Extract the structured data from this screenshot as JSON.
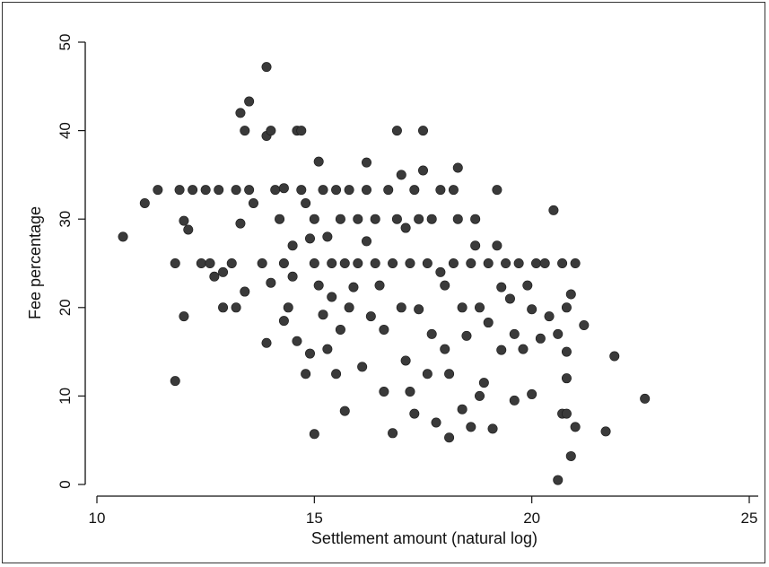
{
  "chart_data": {
    "type": "scatter",
    "title": "",
    "xlabel": "Settlement amount (natural log)",
    "ylabel": "Fee percentage",
    "xlim": [
      10,
      25
    ],
    "ylim": [
      0,
      50
    ],
    "xticks": [
      10,
      15,
      20,
      25
    ],
    "yticks": [
      0,
      10,
      20,
      30,
      40,
      50
    ],
    "grid": false,
    "legend": "none",
    "marker_color": "#3a3a3a",
    "series": [
      {
        "points": [
          [
            10.6,
            28
          ],
          [
            11.1,
            31.8
          ],
          [
            11.4,
            33.3
          ],
          [
            11.8,
            25
          ],
          [
            11.9,
            33.3
          ],
          [
            11.8,
            11.7
          ],
          [
            12.0,
            19
          ],
          [
            12.0,
            29.8
          ],
          [
            12.1,
            28.8
          ],
          [
            12.2,
            33.3
          ],
          [
            12.4,
            25
          ],
          [
            12.5,
            33.3
          ],
          [
            12.6,
            25
          ],
          [
            12.7,
            23.5
          ],
          [
            12.8,
            33.3
          ],
          [
            12.9,
            24
          ],
          [
            12.9,
            20
          ],
          [
            13.1,
            25
          ],
          [
            13.2,
            33.3
          ],
          [
            13.2,
            20
          ],
          [
            13.3,
            42
          ],
          [
            13.4,
            40
          ],
          [
            13.5,
            43.3
          ],
          [
            13.4,
            21.8
          ],
          [
            13.3,
            29.5
          ],
          [
            13.5,
            33.3
          ],
          [
            13.6,
            31.8
          ],
          [
            13.8,
            25
          ],
          [
            13.9,
            47.2
          ],
          [
            13.9,
            39.4
          ],
          [
            14.0,
            40
          ],
          [
            13.9,
            16
          ],
          [
            14.0,
            22.8
          ],
          [
            14.1,
            33.3
          ],
          [
            14.2,
            30
          ],
          [
            14.3,
            33.5
          ],
          [
            14.3,
            25
          ],
          [
            14.3,
            18.5
          ],
          [
            14.4,
            20
          ],
          [
            14.5,
            27
          ],
          [
            14.5,
            23.5
          ],
          [
            14.6,
            40
          ],
          [
            14.6,
            16.2
          ],
          [
            14.7,
            40
          ],
          [
            14.7,
            33.3
          ],
          [
            14.8,
            31.8
          ],
          [
            14.8,
            12.5
          ],
          [
            14.9,
            27.8
          ],
          [
            14.9,
            14.8
          ],
          [
            15.0,
            30
          ],
          [
            15.0,
            25
          ],
          [
            15.0,
            5.7
          ],
          [
            15.1,
            36.5
          ],
          [
            15.1,
            22.5
          ],
          [
            15.2,
            33.3
          ],
          [
            15.2,
            19.2
          ],
          [
            15.3,
            15.3
          ],
          [
            15.3,
            28
          ],
          [
            15.4,
            25
          ],
          [
            15.4,
            21.2
          ],
          [
            15.5,
            33.3
          ],
          [
            15.5,
            12.5
          ],
          [
            15.6,
            30
          ],
          [
            15.6,
            17.5
          ],
          [
            15.7,
            25
          ],
          [
            15.7,
            8.3
          ],
          [
            15.8,
            33.3
          ],
          [
            15.8,
            20
          ],
          [
            15.9,
            22.3
          ],
          [
            16.0,
            30
          ],
          [
            16.0,
            25
          ],
          [
            16.1,
            13.3
          ],
          [
            16.2,
            36.4
          ],
          [
            16.2,
            27.5
          ],
          [
            16.2,
            33.3
          ],
          [
            16.3,
            19
          ],
          [
            16.4,
            25
          ],
          [
            16.4,
            30
          ],
          [
            16.5,
            22.5
          ],
          [
            16.6,
            17.5
          ],
          [
            16.6,
            10.5
          ],
          [
            16.7,
            33.3
          ],
          [
            16.8,
            25
          ],
          [
            16.8,
            5.8
          ],
          [
            16.9,
            40
          ],
          [
            16.9,
            30
          ],
          [
            17.0,
            35
          ],
          [
            17.0,
            20
          ],
          [
            17.1,
            29
          ],
          [
            17.1,
            14
          ],
          [
            17.2,
            25
          ],
          [
            17.2,
            10.5
          ],
          [
            17.3,
            33.3
          ],
          [
            17.3,
            8
          ],
          [
            17.4,
            30
          ],
          [
            17.4,
            19.8
          ],
          [
            17.5,
            40
          ],
          [
            17.5,
            35.5
          ],
          [
            17.6,
            25
          ],
          [
            17.6,
            12.5
          ],
          [
            17.7,
            30
          ],
          [
            17.7,
            17
          ],
          [
            17.8,
            7
          ],
          [
            17.9,
            33.3
          ],
          [
            17.9,
            24
          ],
          [
            18.0,
            22.5
          ],
          [
            18.0,
            15.3
          ],
          [
            18.1,
            5.3
          ],
          [
            18.1,
            12.5
          ],
          [
            18.2,
            25
          ],
          [
            18.2,
            33.3
          ],
          [
            18.3,
            35.8
          ],
          [
            18.3,
            30
          ],
          [
            18.4,
            20
          ],
          [
            18.4,
            8.5
          ],
          [
            18.5,
            16.8
          ],
          [
            18.6,
            25
          ],
          [
            18.6,
            6.5
          ],
          [
            18.7,
            30
          ],
          [
            18.7,
            27
          ],
          [
            18.8,
            20
          ],
          [
            18.8,
            10
          ],
          [
            18.9,
            11.5
          ],
          [
            19.0,
            25
          ],
          [
            19.0,
            18.3
          ],
          [
            19.1,
            6.3
          ],
          [
            19.2,
            33.3
          ],
          [
            19.2,
            27
          ],
          [
            19.3,
            22.3
          ],
          [
            19.3,
            15.2
          ],
          [
            19.4,
            25
          ],
          [
            19.5,
            21
          ],
          [
            19.6,
            9.5
          ],
          [
            19.6,
            17
          ],
          [
            19.7,
            25
          ],
          [
            19.8,
            15.3
          ],
          [
            19.9,
            22.5
          ],
          [
            20.0,
            19.8
          ],
          [
            20.0,
            10.2
          ],
          [
            20.1,
            25
          ],
          [
            20.2,
            16.5
          ],
          [
            20.3,
            25
          ],
          [
            20.4,
            19
          ],
          [
            20.6,
            0.5
          ],
          [
            20.6,
            17
          ],
          [
            20.7,
            25
          ],
          [
            20.8,
            20
          ],
          [
            20.8,
            15
          ],
          [
            20.9,
            21.5
          ],
          [
            21.0,
            25
          ],
          [
            21.2,
            18
          ],
          [
            20.5,
            31
          ],
          [
            20.7,
            8
          ],
          [
            20.8,
            12
          ],
          [
            20.8,
            8
          ],
          [
            20.9,
            3.2
          ],
          [
            21.0,
            6.5
          ],
          [
            21.7,
            6
          ],
          [
            21.9,
            14.5
          ],
          [
            22.6,
            9.7
          ]
        ]
      }
    ]
  }
}
